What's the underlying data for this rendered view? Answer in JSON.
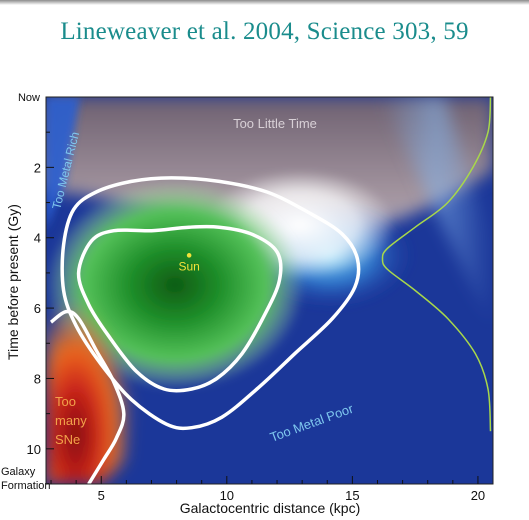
{
  "slide": {
    "title": "Lineweaver et al. 2004, Science 303, 59"
  },
  "chart_data": {
    "type": "heatmap",
    "title": "",
    "xlabel": "Galactocentric distance (kpc)",
    "ylabel": "Time before present (Gy)",
    "xlim": [
      2.8,
      20.6
    ],
    "ylim": [
      0,
      11
    ],
    "x_ticks": [
      5,
      10,
      15,
      20
    ],
    "y_ticks": [
      2,
      4,
      6,
      8,
      10
    ],
    "y_top_label": "Now",
    "y_bottom_label": [
      "Galaxy",
      "Formation"
    ],
    "region_labels": {
      "too_little_time": "Too Little Time",
      "too_metal_rich": "Too Metal Rich",
      "too_metal_poor": "Too Metal Poor",
      "too_many_sne": [
        "Too",
        "many",
        "SNe"
      ],
      "sun": "Sun"
    },
    "sun_point": {
      "x": 8.5,
      "y": 4.5
    },
    "contour_68": [
      [
        8.5,
        3.7
      ],
      [
        7,
        3.8
      ],
      [
        5.5,
        3.8
      ],
      [
        4.6,
        4.1
      ],
      [
        4.1,
        5
      ],
      [
        4.5,
        5.9
      ],
      [
        5.3,
        6.8
      ],
      [
        6.4,
        7.8
      ],
      [
        7.5,
        8.3
      ],
      [
        8.6,
        8.3
      ],
      [
        9.6,
        8.0
      ],
      [
        10.6,
        7.3
      ],
      [
        11.5,
        6.2
      ],
      [
        12.1,
        5.2
      ],
      [
        12,
        4.4
      ],
      [
        11,
        3.9
      ],
      [
        9.7,
        3.7
      ]
    ],
    "contour_95": [
      [
        6.2,
        2.4
      ],
      [
        4.8,
        2.7
      ],
      [
        3.9,
        3.2
      ],
      [
        3.5,
        4.2
      ],
      [
        3.5,
        5.5
      ],
      [
        4,
        6.5
      ],
      [
        5,
        7.6
      ],
      [
        6.2,
        8.6
      ],
      [
        7.6,
        9.3
      ],
      [
        8.6,
        9.4
      ],
      [
        9.8,
        9.1
      ],
      [
        11.2,
        8.3
      ],
      [
        12.7,
        7.3
      ],
      [
        14.2,
        6.3
      ],
      [
        15.1,
        5.4
      ],
      [
        15.2,
        4.6
      ],
      [
        14.6,
        3.9
      ],
      [
        13.3,
        3.3
      ],
      [
        11.6,
        2.7
      ],
      [
        9.7,
        2.4
      ],
      [
        7.8,
        2.3
      ]
    ],
    "sne_boundary": [
      [
        3.0,
        6.4
      ],
      [
        3.6,
        6.1
      ],
      [
        4.1,
        6.3
      ],
      [
        4.8,
        7.2
      ],
      [
        5.5,
        8.1
      ],
      [
        5.9,
        9.0
      ],
      [
        5.6,
        9.7
      ],
      [
        5.1,
        10.3
      ],
      [
        4.5,
        11
      ]
    ],
    "age_distribution_curve": {
      "description_free": true,
      "x_baseline": 16.2,
      "points": [
        [
          20.5,
          0
        ],
        [
          20.4,
          1.0
        ],
        [
          19.8,
          2.0
        ],
        [
          18.8,
          3.0
        ],
        [
          17.5,
          3.7
        ],
        [
          16.4,
          4.3
        ],
        [
          16.2,
          4.6
        ],
        [
          16.4,
          4.9
        ],
        [
          17.5,
          5.5
        ],
        [
          18.8,
          6.3
        ],
        [
          19.9,
          7.3
        ],
        [
          20.4,
          8.3
        ],
        [
          20.5,
          9.5
        ]
      ]
    }
  }
}
